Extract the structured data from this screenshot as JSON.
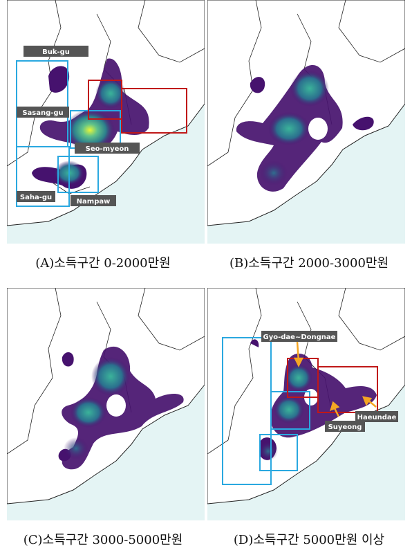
{
  "panels": [
    {
      "caption": "(A)소득구간 0-2000만원",
      "labels": {
        "bukgu": "Buk-gu",
        "sasanggu": "Sasang-gu",
        "seomyeon": "Seo-myeon",
        "sahagu": "Saha-gu",
        "nampaw": "Nampaw"
      }
    },
    {
      "caption": "(B)소득구간 2000-3000만원"
    },
    {
      "caption": "(C)소득구간 3000-5000만원"
    },
    {
      "caption": "(D)소득구간 5000만원 이상",
      "labels": {
        "gyodae": "Gyo-dae~Dongnae",
        "haeundae": "Haeundae",
        "suyeong": "Suyeong"
      }
    }
  ],
  "colors": {
    "sea": "#e4f4f4",
    "land": "#ffffff",
    "density_low": "#46126e",
    "density_mid": "#2a8a8a",
    "density_high": "#d8f030",
    "box_blue": "#2aa8e0",
    "box_red": "#c01818",
    "label_bg": "#555555",
    "arrow": "#f5a623"
  }
}
